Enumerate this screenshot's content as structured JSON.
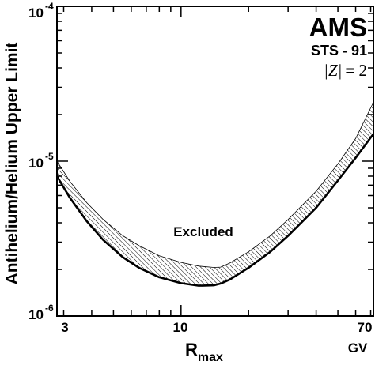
{
  "chart_data": {
    "type": "line",
    "title": "",
    "xlabel": "R",
    "xlabel_subscript": "max",
    "x_unit": "GV",
    "ylabel": "Antihelium/Helium Upper Limit",
    "xscale": "log",
    "yscale": "log",
    "xlim": [
      2.8,
      72
    ],
    "ylim": [
      1e-06,
      0.0001
    ],
    "x_tick_labels": [
      "3",
      "10",
      "70"
    ],
    "y_tick_labels": [
      {
        "base": "10",
        "exp": "-6"
      },
      {
        "base": "10",
        "exp": "-5"
      },
      {
        "base": "10",
        "exp": "-4"
      }
    ],
    "annotations": {
      "experiment": "AMS",
      "mission": "STS - 91",
      "charge_lhs": "|Z|",
      "charge_rhs": "= 2",
      "region": "Excluded"
    },
    "series": [
      {
        "name": "",
        "style": "solid",
        "x": [
          2.8,
          3.2,
          3.8,
          4.5,
          5.5,
          6.5,
          8.0,
          10.0,
          12.0,
          14.0,
          15.0,
          16.5,
          20.0,
          25.0,
          30.0,
          40.0,
          50.0,
          60.0,
          72.0
        ],
        "y": [
          8e-06,
          5.8e-06,
          4.1e-06,
          3.1e-06,
          2.4e-06,
          2.05e-06,
          1.78e-06,
          1.63e-06,
          1.57e-06,
          1.58e-06,
          1.62e-06,
          1.72e-06,
          2.05e-06,
          2.6e-06,
          3.3e-06,
          5e-06,
          7.5e-06,
          1.05e-05,
          1.5e-05
        ]
      },
      {
        "name": "",
        "style": "band-upper",
        "x": [
          2.8,
          3.2,
          3.8,
          4.5,
          5.5,
          6.5,
          8.0,
          10.0,
          12.0,
          14.0,
          15.0,
          16.5,
          20.0,
          25.0,
          30.0,
          40.0,
          50.0,
          60.0,
          72.0
        ],
        "y": [
          1e-05,
          7.4e-06,
          5.4e-06,
          4.2e-06,
          3.3e-06,
          2.85e-06,
          2.45e-06,
          2.22e-06,
          2.1e-06,
          2.06e-06,
          2.07e-06,
          2.2e-06,
          2.6e-06,
          3.3e-06,
          4.2e-06,
          6.4e-06,
          9.6e-06,
          1.4e-05,
          2.4e-05
        ]
      }
    ]
  }
}
